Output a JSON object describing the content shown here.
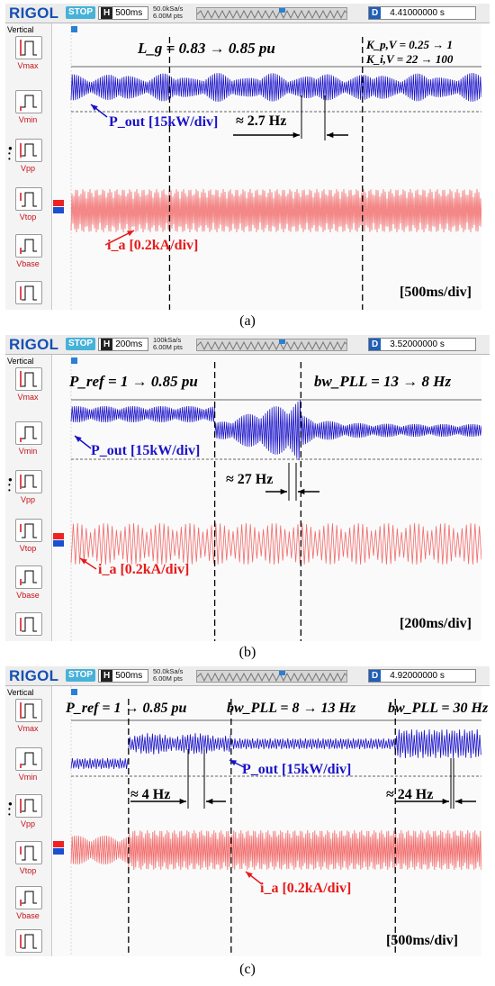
{
  "panels": [
    {
      "caption": "(a)",
      "logo": "RIGOL",
      "status": "STOP",
      "timebase_prefix": "H",
      "timebase": "500ms",
      "sample_rate": "50.0kSa/s",
      "memory_depth": "6.00M pts",
      "delay_prefix": "D",
      "delay_value": "4.41000000 s",
      "trigger_position": 0.56,
      "sidebar_title": "Vertical",
      "measure_buttons": [
        "Vmax",
        "Vmin",
        "Vpp",
        "Vtop",
        "Vbase"
      ],
      "annotations": {
        "event1": "L_g = 0.83 → 0.85 pu",
        "event2a": "K_p,V = 0.25 → 1",
        "event2b": "K_i,V = 22 → 100",
        "pout_label": "P_out [15kW/div]",
        "freq_label": "≈ 2.7 Hz",
        "ia_label": "i_a [0.2kA/div]",
        "time_div": "[500ms/div]"
      },
      "event_marks": [
        0.24,
        0.71
      ]
    },
    {
      "caption": "(b)",
      "logo": "RIGOL",
      "status": "STOP",
      "timebase_prefix": "H",
      "timebase": "200ms",
      "sample_rate": "100kSa/s",
      "memory_depth": "6.00M pts",
      "delay_prefix": "D",
      "delay_value": "3.52000000 s",
      "trigger_position": 0.56,
      "sidebar_title": "Vertical",
      "measure_buttons": [
        "Vmax",
        "Vmin",
        "Vpp",
        "Vtop",
        "Vbase"
      ],
      "annotations": {
        "event1": "P_ref = 1 → 0.85 pu",
        "event2": "bw_PLL = 13 → 8 Hz",
        "pout_label": "P_out [15kW/div]",
        "freq_label": "≈ 27 Hz",
        "ia_label": "i_a [0.2kA/div]",
        "time_div": "[200ms/div]"
      },
      "event_marks": [
        0.35,
        0.56
      ]
    },
    {
      "caption": "(c)",
      "logo": "RIGOL",
      "status": "STOP",
      "timebase_prefix": "H",
      "timebase": "500ms",
      "sample_rate": "50.0kSa/s",
      "memory_depth": "6.00M pts",
      "delay_prefix": "D",
      "delay_value": "4.92000000 s",
      "trigger_position": 0.56,
      "sidebar_title": "Vertical",
      "measure_buttons": [
        "Vmax",
        "Vmin",
        "Vpp",
        "Vtop",
        "Vbase"
      ],
      "annotations": {
        "event1": "P_ref = 1 → 0.85 pu",
        "event2": "bw_PLL = 8 → 13 Hz",
        "event3": "bw_PLL = 30 Hz",
        "pout_label": "P_out [15kW/div]",
        "freq_label_1": "≈ 4 Hz",
        "freq_label_2": "≈ 24 Hz",
        "ia_label": "i_a [0.2kA/div]",
        "time_div": "[500ms/div]"
      },
      "event_marks": [
        0.14,
        0.39,
        0.79
      ]
    }
  ],
  "colors": {
    "logo": "#1550b4",
    "status_badge": "#47b2d8",
    "pout_trace": "#1a12c8",
    "ia_trace": "#f26a6a",
    "label_red": "#e61a1a",
    "label_blue": "#1a12c8"
  }
}
